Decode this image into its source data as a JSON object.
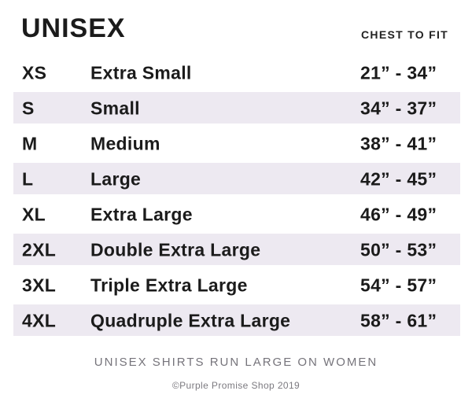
{
  "header": {
    "title": "UNISEX",
    "column_header": "CHEST TO FIT"
  },
  "table": {
    "rows": [
      {
        "code": "XS",
        "label": "Extra Small",
        "range": "21” - 34”",
        "shaded": false
      },
      {
        "code": "S",
        "label": "Small",
        "range": "34” - 37”",
        "shaded": true
      },
      {
        "code": "M",
        "label": "Medium",
        "range": "38” - 41”",
        "shaded": false
      },
      {
        "code": "L",
        "label": "Large",
        "range": "42” - 45”",
        "shaded": true
      },
      {
        "code": "XL",
        "label": "Extra Large",
        "range": "46” - 49”",
        "shaded": false
      },
      {
        "code": "2XL",
        "label": "Double Extra Large",
        "range": "50” - 53”",
        "shaded": true
      },
      {
        "code": "3XL",
        "label": "Triple Extra Large",
        "range": "54” - 57”",
        "shaded": false
      },
      {
        "code": "4XL",
        "label": "Quadruple Extra Large",
        "range": "58” - 61”",
        "shaded": true
      }
    ]
  },
  "footer": {
    "note": "UNISEX SHIRTS RUN LARGE ON WOMEN",
    "copyright": "©Purple Promise Shop 2019"
  },
  "colors": {
    "stripe": "#EDE9F1",
    "text": "#1B1B1B",
    "muted": "#76747B"
  }
}
